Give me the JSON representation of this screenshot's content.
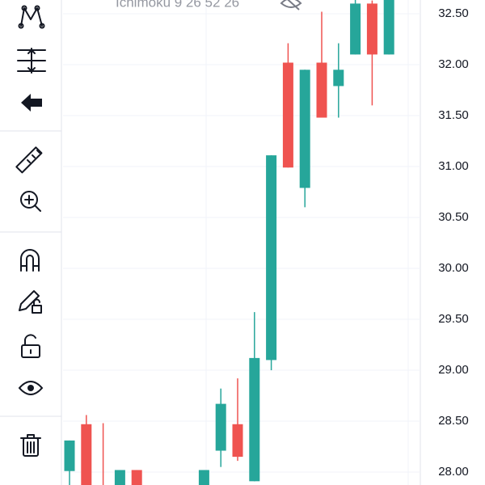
{
  "indicator_label": "Ichimoku 9 26 52 26",
  "chart_data": {
    "type": "candlestick",
    "categories": [
      null,
      null,
      null,
      null,
      null,
      null,
      null,
      null,
      null,
      null,
      null,
      null,
      null,
      null,
      null,
      null,
      null,
      null,
      null,
      null
    ],
    "open": [
      28.01,
      28.47,
      27.85,
      27.8,
      28.02,
      null,
      null,
      null,
      27.8,
      28.21,
      28.47,
      27.91,
      29.1,
      32.02,
      30.79,
      32.02,
      31.79,
      32.1,
      32.6,
      32.1
    ],
    "high": [
      28.31,
      28.56,
      28.48,
      28.02,
      28.02,
      null,
      null,
      null,
      28.02,
      28.82,
      28.92,
      29.57,
      31.11,
      32.21,
      31.95,
      32.52,
      32.21,
      32.65,
      32.63,
      32.7
    ],
    "low": [
      27.8,
      27.7,
      27.75,
      27.75,
      27.75,
      null,
      null,
      null,
      27.75,
      28.05,
      28.11,
      27.91,
      29.0,
      30.99,
      30.6,
      31.48,
      31.48,
      32.1,
      31.6,
      32.1
    ],
    "close": [
      28.31,
      27.8,
      27.8,
      28.02,
      27.8,
      null,
      null,
      null,
      28.02,
      28.67,
      28.15,
      29.12,
      31.11,
      30.99,
      31.95,
      31.48,
      31.95,
      32.6,
      32.1,
      32.65
    ],
    "up_color": "#26a69a",
    "down_color": "#ef5350",
    "ylim": [
      27.873,
      32.635
    ],
    "yticks": [
      {
        "value": 28,
        "label": "28.00"
      },
      {
        "value": 28.5,
        "label": "28.50"
      },
      {
        "value": 29,
        "label": "29.00"
      },
      {
        "value": 29.5,
        "label": "29.50"
      },
      {
        "value": 30,
        "label": "30.00"
      },
      {
        "value": 30.5,
        "label": "30.50"
      },
      {
        "value": 31,
        "label": "31.00"
      },
      {
        "value": 31.5,
        "label": "31.50"
      },
      {
        "value": 32,
        "label": "32.00"
      },
      {
        "value": 32.5,
        "label": "32.50"
      }
    ],
    "grid": true
  }
}
